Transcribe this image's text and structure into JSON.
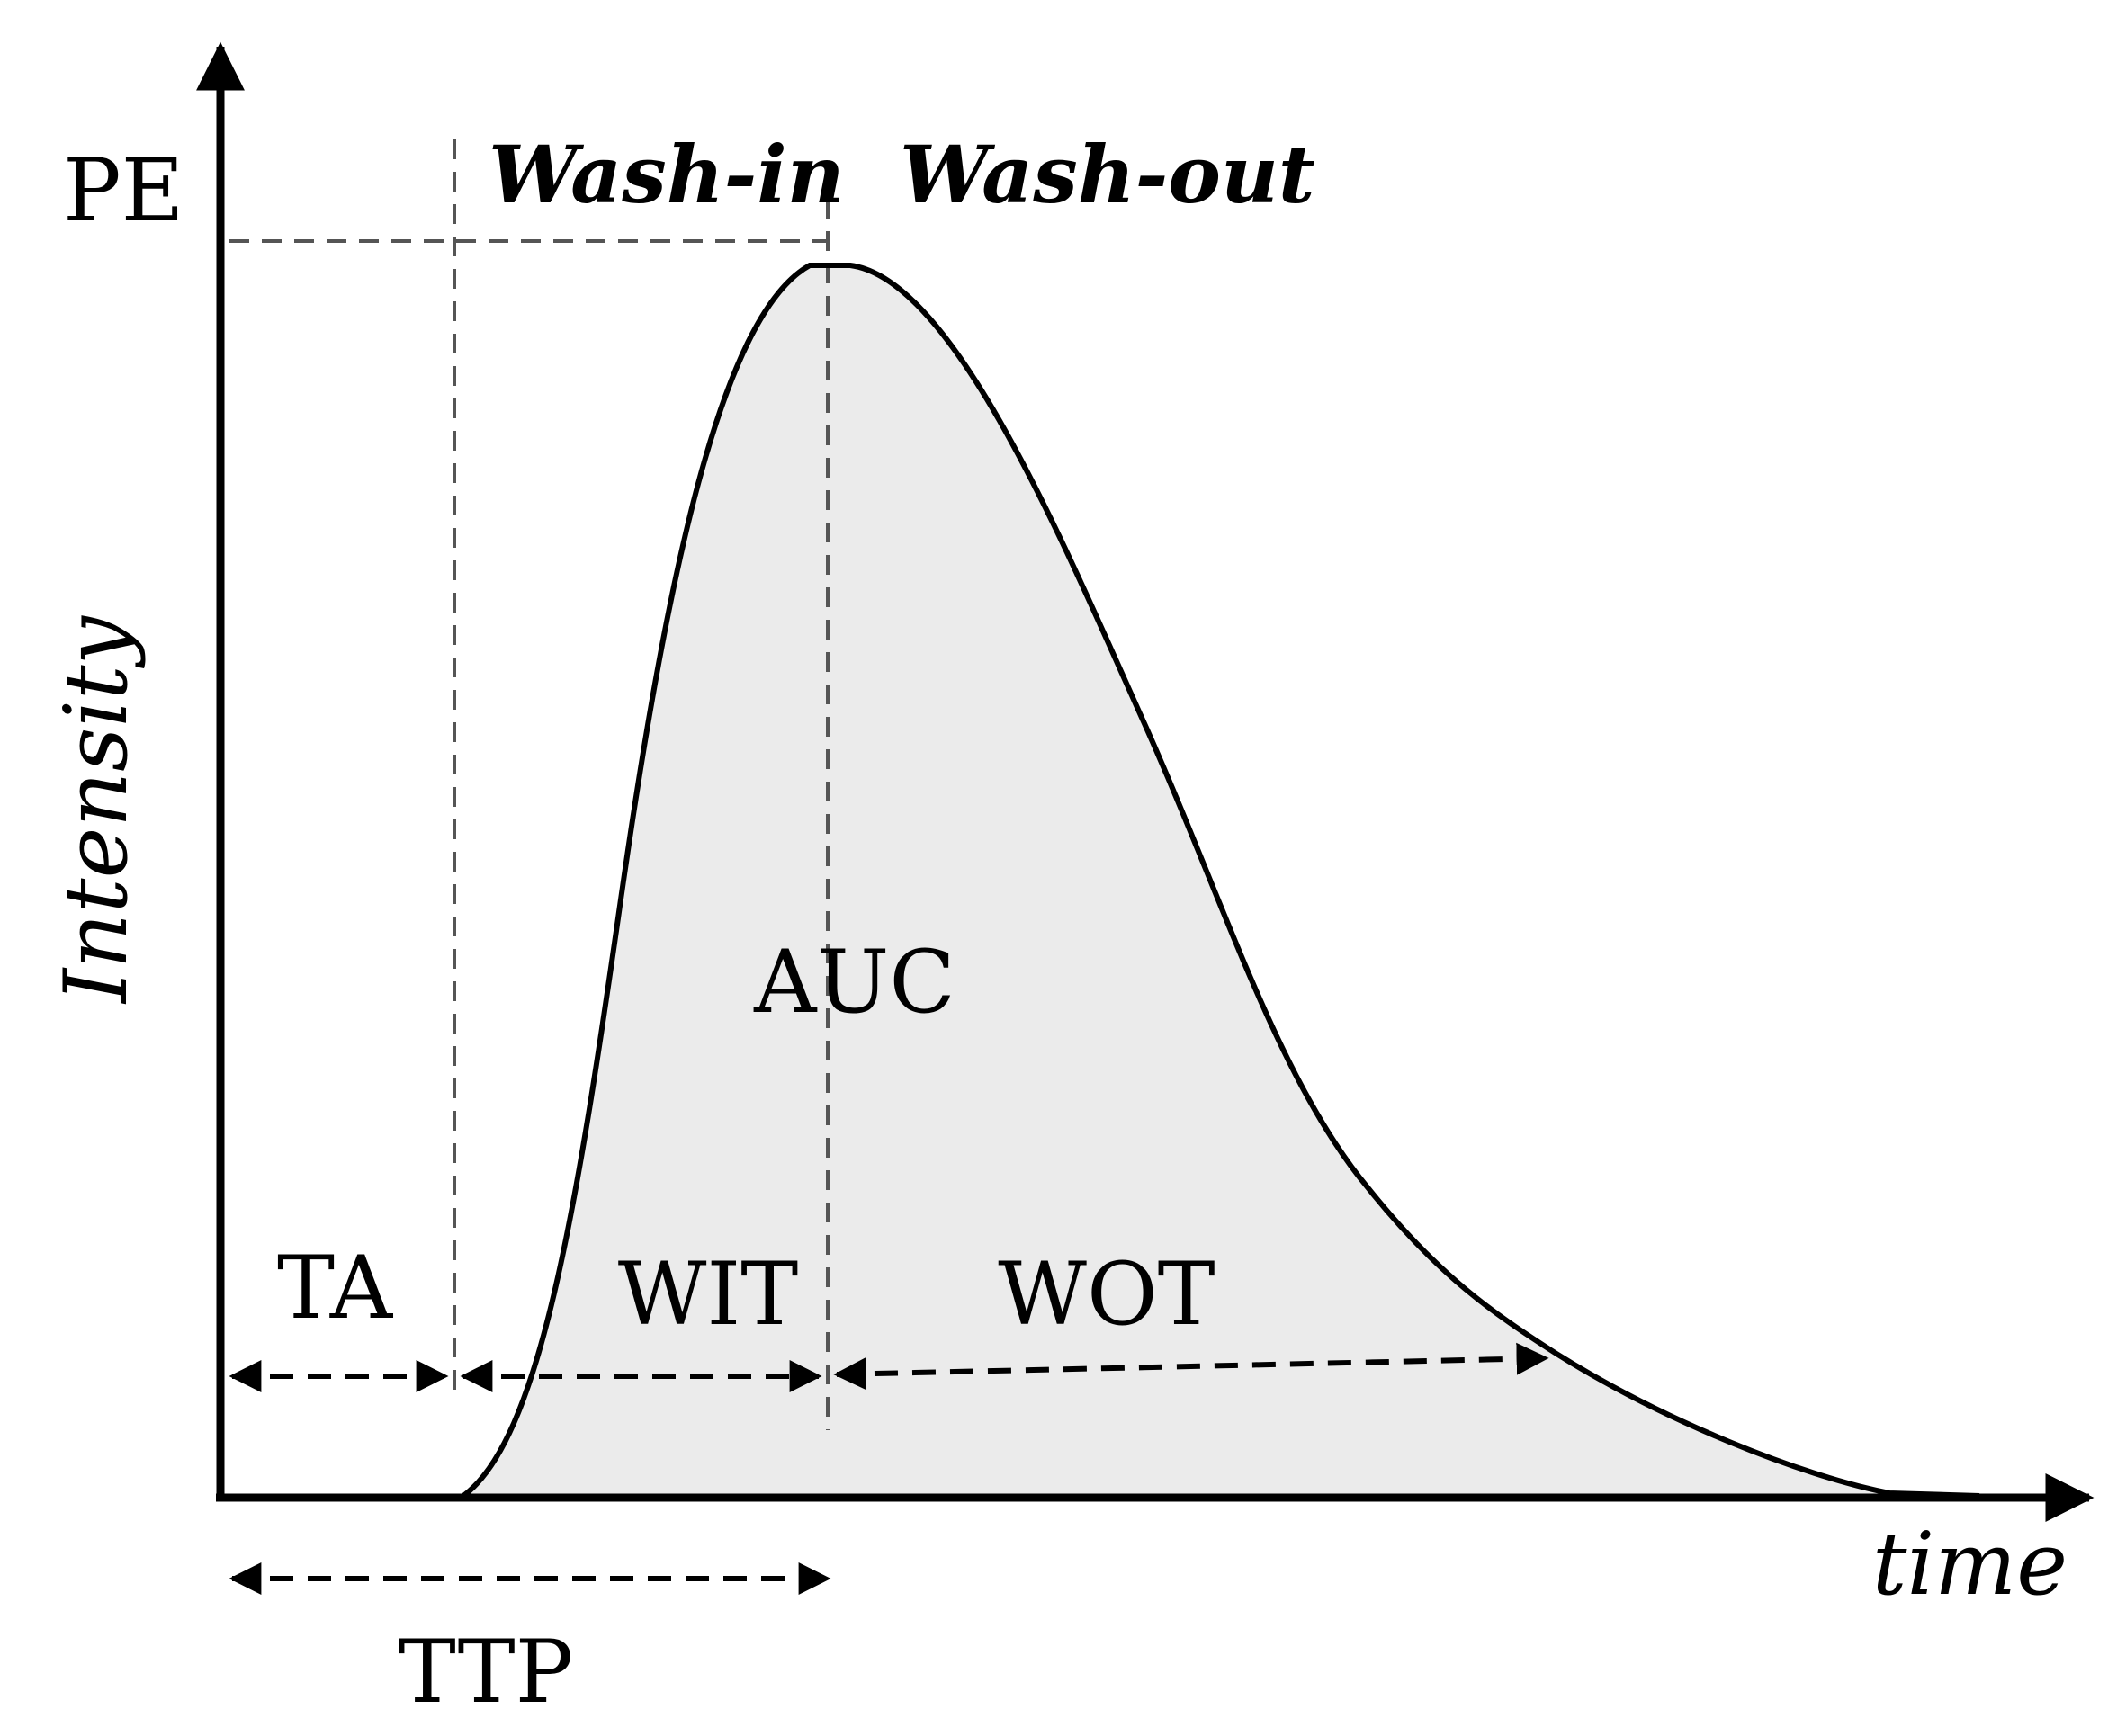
{
  "axes": {
    "y_label": "Intensity",
    "x_label": "time",
    "peak_label": "PE"
  },
  "phases": {
    "wash_in": "Wash-in",
    "wash_out": "Wash-out"
  },
  "parameters": {
    "area": "AUC",
    "ta": "TA",
    "wit": "WIT",
    "wot": "WOT",
    "ttp": "TTP"
  },
  "colors": {
    "curve": "#000000",
    "area_fill": "#ebebeb",
    "guide_lines": "#555555"
  }
}
